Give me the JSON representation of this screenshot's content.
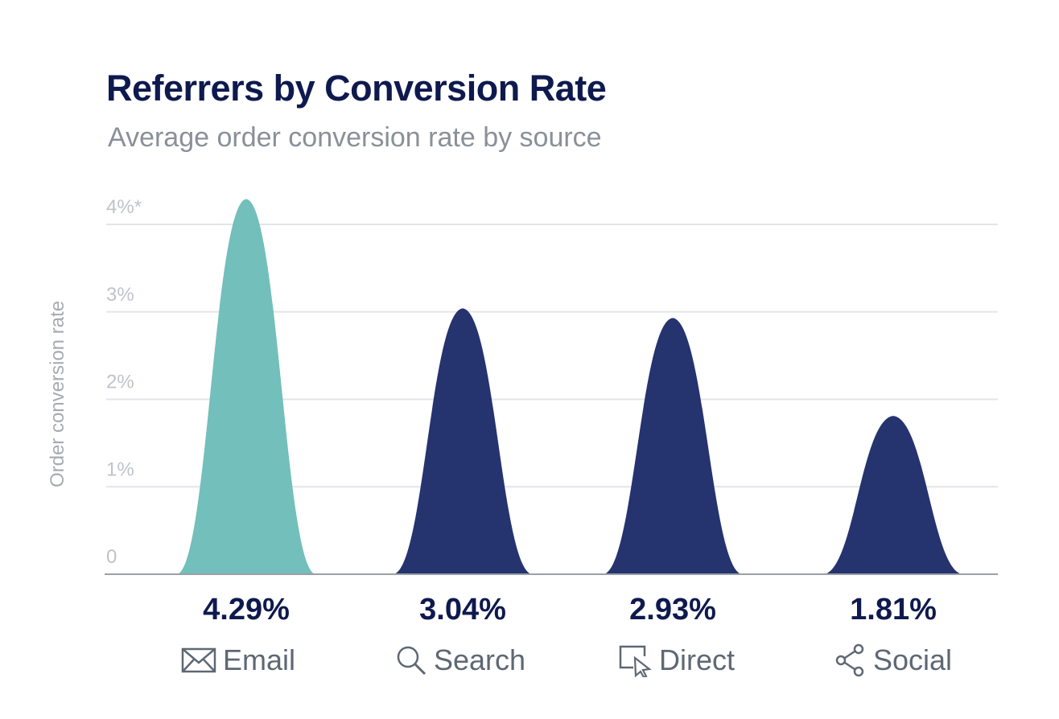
{
  "title": "Referrers by Conversion Rate",
  "subtitle": "Average order conversion rate by source",
  "chart_data": {
    "type": "area",
    "title": "Referrers by Conversion Rate",
    "subtitle": "Average order conversion rate by source",
    "ylabel": "Order conversion rate",
    "xlabel": "",
    "y_ticks": [
      "0",
      "1%",
      "2%",
      "3%",
      "4%*"
    ],
    "y_tick_values": [
      0,
      1,
      2,
      3,
      4
    ],
    "ylim": [
      0,
      4
    ],
    "grid": true,
    "categories": [
      "Email",
      "Search",
      "Direct",
      "Social"
    ],
    "values": [
      4.29,
      3.04,
      2.93,
      1.81
    ],
    "value_labels": [
      "4.29%",
      "3.04%",
      "2.93%",
      "1.81%"
    ],
    "icons": [
      "envelope-icon",
      "magnifier-icon",
      "cursor-window-icon",
      "share-icon"
    ],
    "colors": [
      "#72bfbb",
      "#25336f",
      "#25336f",
      "#25336f"
    ]
  },
  "colors": {
    "title": "#0e1a4e",
    "value_label": "#0e1a4e",
    "gridline": "#e3e5e8",
    "axis": "#9aa0a6",
    "tick_label": "#bfc3c8",
    "legend_text": "#5e6874"
  }
}
